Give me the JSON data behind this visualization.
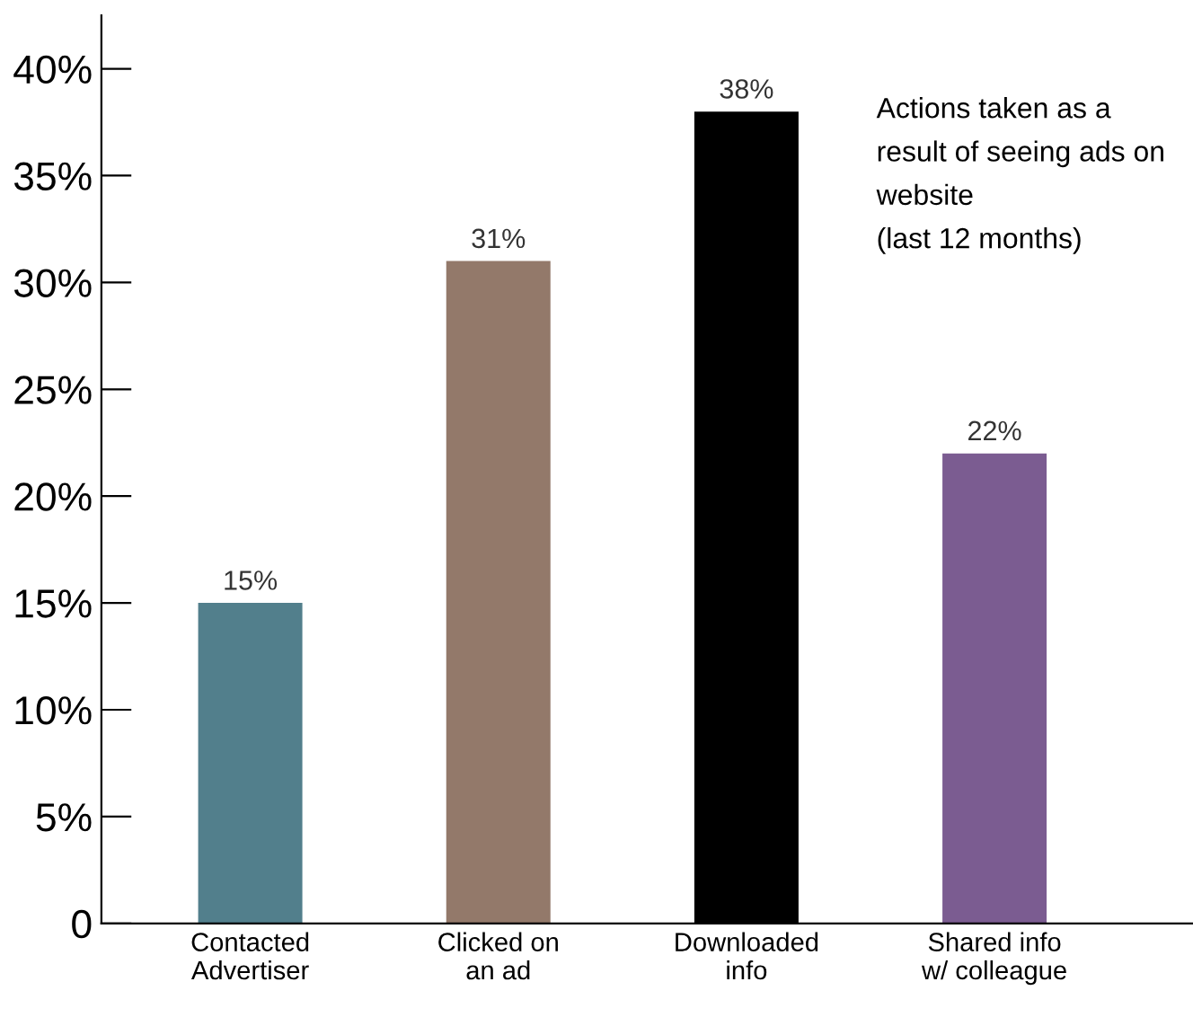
{
  "chart_data": {
    "type": "bar",
    "categories": [
      "Contacted\nAdvertiser",
      "Clicked on\nan ad",
      "Downloaded\ninfo",
      "Shared info\nw/ colleague"
    ],
    "values": [
      15,
      31,
      38,
      22
    ],
    "colors": [
      "#527f8c",
      "#93796a",
      "#000000",
      "#7b5c91"
    ],
    "ylim": [
      0,
      42.5
    ],
    "yticks": [
      {
        "value": 0,
        "label": "0"
      },
      {
        "value": 5,
        "label": "5%"
      },
      {
        "value": 10,
        "label": "10%"
      },
      {
        "value": 15,
        "label": "15%"
      },
      {
        "value": 20,
        "label": "20%"
      },
      {
        "value": 25,
        "label": "25%"
      },
      {
        "value": 30,
        "label": "30%"
      },
      {
        "value": 35,
        "label": "35%"
      },
      {
        "value": 40,
        "label": "40%"
      }
    ],
    "data_labels": true,
    "value_labels": [
      "15%",
      "31%",
      "38%",
      "22%"
    ],
    "annotations": [
      "Actions taken as a\nresult of seeing ads on\nwebsite\n(last 12 months)"
    ],
    "grid": false,
    "legend": false
  }
}
